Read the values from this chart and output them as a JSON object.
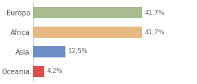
{
  "categories": [
    "Europa",
    "Africa",
    "Asia",
    "Oceania"
  ],
  "values": [
    41.7,
    41.7,
    12.5,
    4.2
  ],
  "labels": [
    "41,7%",
    "41,7%",
    "12,5%",
    "4,2%"
  ],
  "bar_colors": [
    "#a8bc8f",
    "#e8b882",
    "#6b8fc4",
    "#d94f4f"
  ],
  "background_color": "#ffffff",
  "xlim": [
    0,
    62
  ],
  "bar_height": 0.55
}
